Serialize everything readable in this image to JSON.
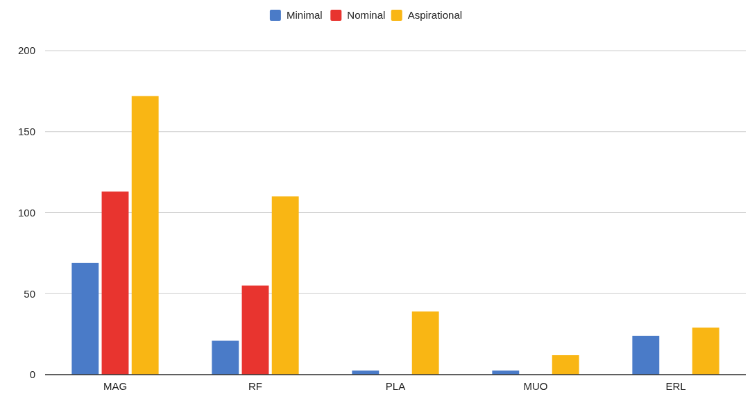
{
  "chart_data": {
    "type": "bar",
    "categories": [
      "MAG",
      "RF",
      "PLA",
      "MUO",
      "ERL"
    ],
    "series": [
      {
        "name": "Minimal",
        "color": "#4a7bc8",
        "values": [
          69,
          21,
          2.5,
          2.5,
          24
        ]
      },
      {
        "name": "Nominal",
        "color": "#e8342f",
        "values": [
          113,
          55,
          0,
          0,
          0
        ]
      },
      {
        "name": "Aspirational",
        "color": "#f9b614",
        "values": [
          172,
          110,
          39,
          12,
          29
        ]
      }
    ],
    "ylim": [
      0,
      200
    ],
    "yticks": [
      0,
      50,
      100,
      150,
      200
    ],
    "grid": "y",
    "legend": "top"
  }
}
